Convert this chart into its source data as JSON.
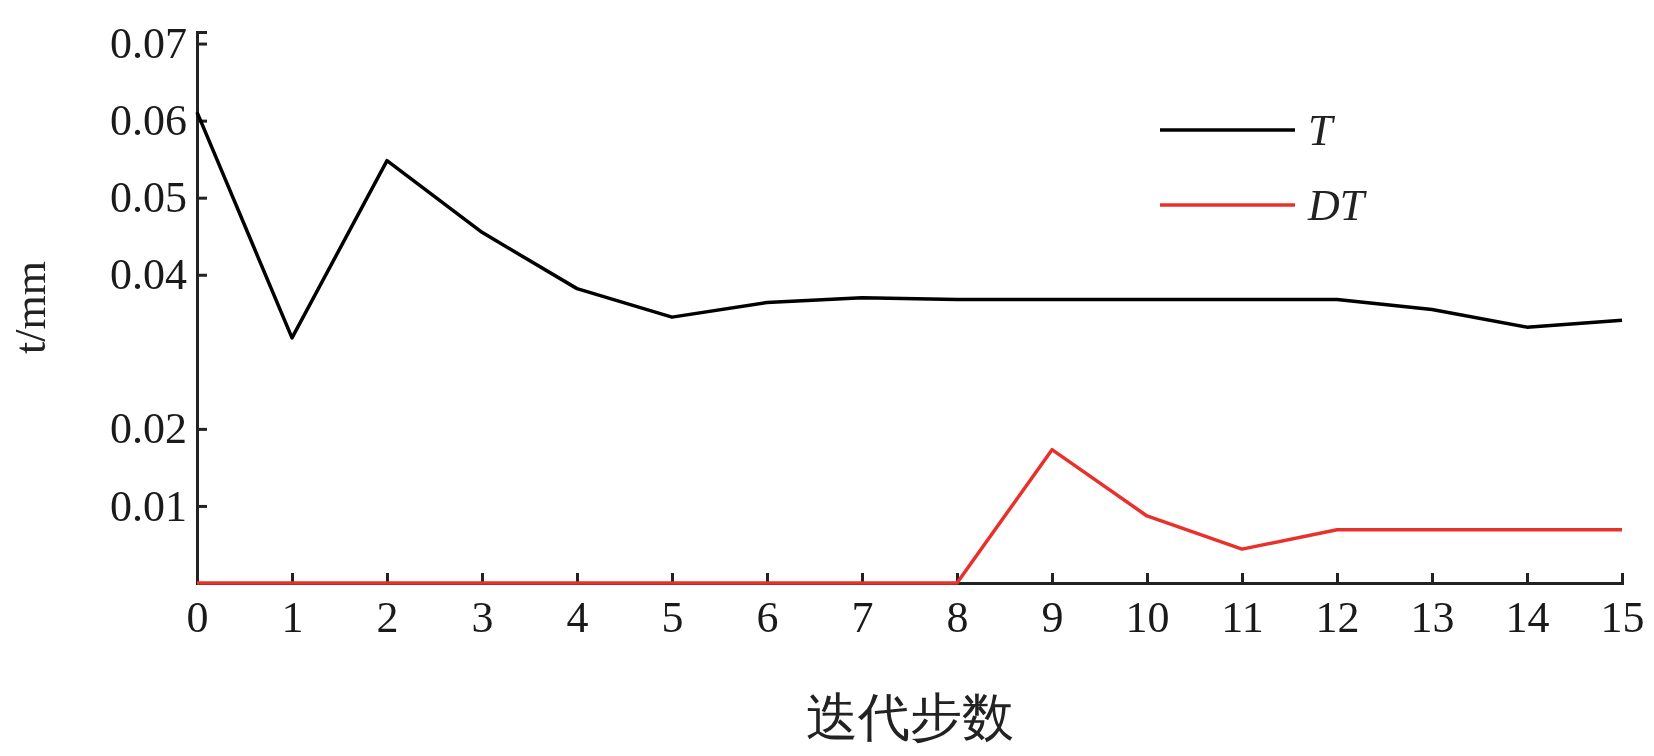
{
  "chart_data": {
    "type": "line",
    "xlabel": "迭代步数",
    "ylabel": "t/mm",
    "x": [
      0,
      1,
      2,
      3,
      4,
      5,
      6,
      7,
      8,
      9,
      10,
      11,
      12,
      13,
      14,
      15
    ],
    "series": [
      {
        "name": "T",
        "color": "#000000",
        "values": [
          0.0611,
          0.0318,
          0.0548,
          0.0455,
          0.0382,
          0.0345,
          0.0364,
          0.037,
          0.0368,
          0.0368,
          0.0368,
          0.0368,
          0.0368,
          0.0355,
          0.0332,
          0.0341
        ]
      },
      {
        "name": "DT",
        "color": "#e8312a",
        "values": [
          0,
          0,
          0,
          0,
          0,
          0,
          0,
          0,
          0,
          0.0173,
          0.0087,
          0.0044,
          0.0069,
          0.0069,
          0.0069,
          0.0069
        ]
      }
    ],
    "xlim": [
      0,
      15
    ],
    "xticks": [
      0,
      1,
      2,
      3,
      4,
      5,
      6,
      7,
      8,
      9,
      10,
      11,
      12,
      13,
      14,
      15
    ],
    "ylim": [
      0,
      0.0715
    ],
    "yticks": [
      0.01,
      0.02,
      0.04,
      0.05,
      0.06,
      0.07
    ],
    "legend": "top right",
    "grid": false,
    "marker": "none",
    "line_style": "solid"
  }
}
